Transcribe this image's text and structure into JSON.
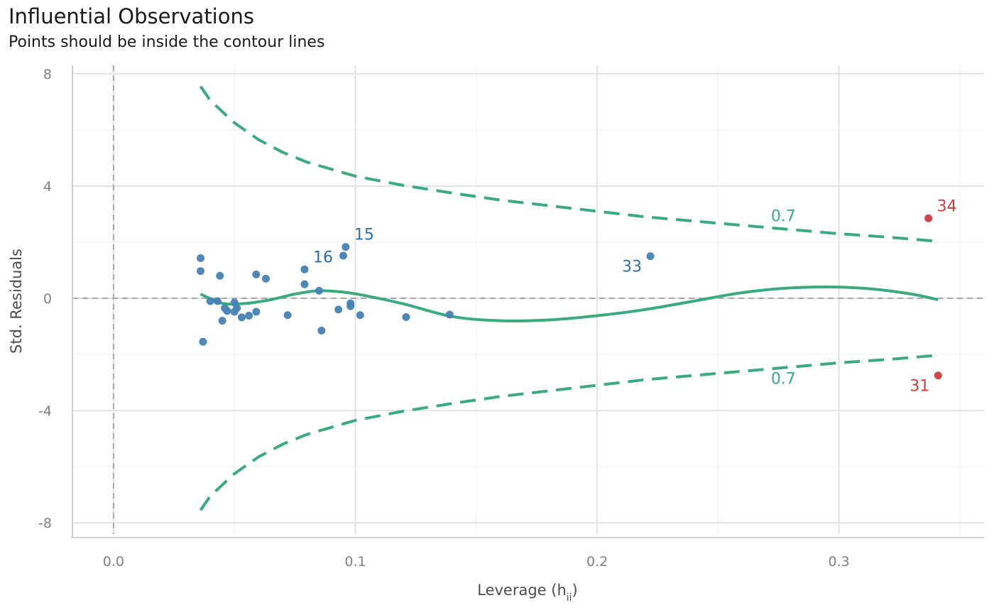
{
  "chart_data": {
    "type": "scatter",
    "title": "Influential Observations",
    "subtitle": "Points should be inside the contour lines",
    "xlabel": "Leverage (h",
    "xlabel_subscript": "ii",
    "xlabel_close": ")",
    "ylabel": "Std. Residuals",
    "xlim": [
      -0.017,
      0.36
    ],
    "ylim": [
      -8.4,
      8.3
    ],
    "x_ticks": [
      0.0,
      0.1,
      0.2,
      0.3
    ],
    "x_tick_labels": [
      "0.0",
      "0.1",
      "0.2",
      "0.3"
    ],
    "y_ticks": [
      -8,
      -4,
      0,
      4,
      8
    ],
    "y_tick_labels": [
      "-8",
      "-4",
      "0",
      "4",
      "8"
    ],
    "grid": true,
    "colors": {
      "points": "#4682b4",
      "labels": "#2f6fa8",
      "influential": "#cd3d3d",
      "contour": "#3aaa80",
      "reference": "#a8a8a8"
    },
    "points": [
      {
        "x": 0.036,
        "y": 1.43
      },
      {
        "x": 0.036,
        "y": 0.97
      },
      {
        "x": 0.037,
        "y": -1.55
      },
      {
        "x": 0.04,
        "y": -0.1
      },
      {
        "x": 0.043,
        "y": -0.1
      },
      {
        "x": 0.044,
        "y": 0.8
      },
      {
        "x": 0.045,
        "y": -0.8
      },
      {
        "x": 0.046,
        "y": -0.35
      },
      {
        "x": 0.047,
        "y": -0.45
      },
      {
        "x": 0.05,
        "y": -0.15
      },
      {
        "x": 0.05,
        "y": -0.48
      },
      {
        "x": 0.051,
        "y": -0.35
      },
      {
        "x": 0.053,
        "y": -0.68
      },
      {
        "x": 0.056,
        "y": -0.62
      },
      {
        "x": 0.059,
        "y": -0.48
      },
      {
        "x": 0.059,
        "y": 0.85
      },
      {
        "x": 0.063,
        "y": 0.7
      },
      {
        "x": 0.072,
        "y": -0.6
      },
      {
        "x": 0.079,
        "y": 1.03
      },
      {
        "x": 0.079,
        "y": 0.5
      },
      {
        "x": 0.085,
        "y": 0.27
      },
      {
        "x": 0.086,
        "y": -1.15
      },
      {
        "x": 0.093,
        "y": -0.4
      },
      {
        "x": 0.095,
        "y": 1.52
      },
      {
        "x": 0.096,
        "y": 1.83
      },
      {
        "x": 0.098,
        "y": -0.28
      },
      {
        "x": 0.098,
        "y": -0.18
      },
      {
        "x": 0.102,
        "y": -0.6
      },
      {
        "x": 0.121,
        "y": -0.67
      },
      {
        "x": 0.139,
        "y": -0.58
      },
      {
        "x": 0.222,
        "y": 1.5
      },
      {
        "x": 0.337,
        "y": 2.85,
        "influential": true
      },
      {
        "x": 0.341,
        "y": -2.75,
        "influential": true
      }
    ],
    "point_labels": [
      {
        "text": "15",
        "x": 0.096,
        "y": 1.83,
        "influential": false,
        "align": "start"
      },
      {
        "text": "16",
        "x": 0.079,
        "y": 1.03,
        "influential": false,
        "align": "start"
      },
      {
        "text": "33",
        "x": 0.222,
        "y": 1.5,
        "influential": false,
        "align": "end"
      },
      {
        "text": "34",
        "x": 0.337,
        "y": 2.85,
        "influential": true,
        "align": "start"
      },
      {
        "text": "31",
        "x": 0.341,
        "y": -2.75,
        "influential": true,
        "align": "end"
      }
    ],
    "smooth_line": {
      "x": [
        0.036,
        0.045,
        0.055,
        0.065,
        0.075,
        0.085,
        0.095,
        0.105,
        0.12,
        0.14,
        0.16,
        0.18,
        0.2,
        0.22,
        0.24,
        0.26,
        0.28,
        0.3,
        0.315,
        0.33,
        0.341
      ],
      "y": [
        0.15,
        -0.18,
        -0.18,
        -0.05,
        0.15,
        0.27,
        0.22,
        0.08,
        -0.2,
        -0.65,
        -0.8,
        -0.77,
        -0.62,
        -0.4,
        -0.1,
        0.2,
        0.37,
        0.4,
        0.32,
        0.15,
        -0.05
      ]
    },
    "contours": [
      {
        "label": "0.7",
        "label_x": 0.277,
        "label_y": 2.95,
        "x": [
          0.036,
          0.04,
          0.05,
          0.06,
          0.07,
          0.08,
          0.09,
          0.1,
          0.12,
          0.14,
          0.16,
          0.18,
          0.2,
          0.22,
          0.24,
          0.26,
          0.28,
          0.3,
          0.32,
          0.341
        ],
        "y": [
          7.55,
          7.05,
          6.25,
          5.65,
          5.2,
          4.85,
          4.6,
          4.35,
          4.02,
          3.75,
          3.5,
          3.3,
          3.1,
          2.9,
          2.75,
          2.6,
          2.45,
          2.3,
          2.18,
          2.03
        ]
      },
      {
        "label": "0.7",
        "label_x": 0.277,
        "label_y": -2.85,
        "x": [
          0.036,
          0.04,
          0.05,
          0.06,
          0.07,
          0.08,
          0.09,
          0.1,
          0.12,
          0.14,
          0.16,
          0.18,
          0.2,
          0.22,
          0.24,
          0.26,
          0.28,
          0.3,
          0.32,
          0.341
        ],
        "y": [
          -7.55,
          -7.05,
          -6.25,
          -5.65,
          -5.2,
          -4.85,
          -4.6,
          -4.35,
          -4.02,
          -3.75,
          -3.5,
          -3.3,
          -3.1,
          -2.9,
          -2.75,
          -2.6,
          -2.45,
          -2.3,
          -2.18,
          -2.03
        ]
      }
    ]
  }
}
